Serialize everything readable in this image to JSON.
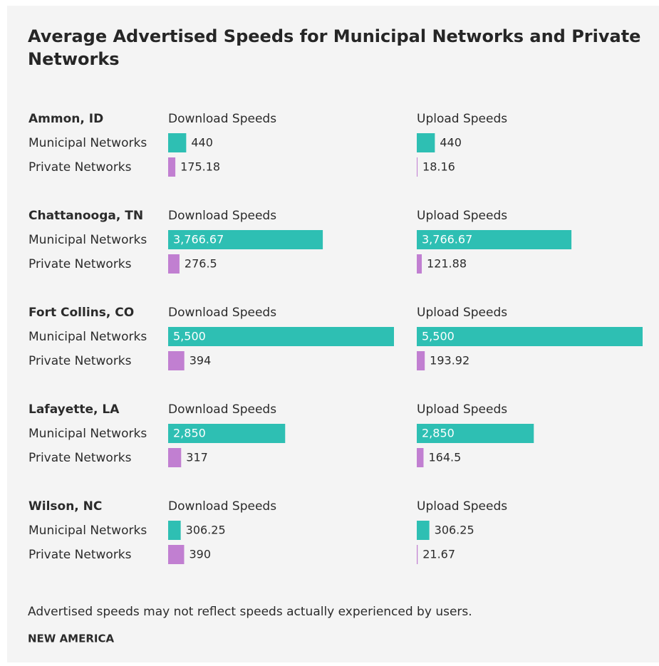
{
  "chart_data": {
    "type": "bar",
    "title": "Average Advertised Speeds for Municipal Networks and Private Networks",
    "categories": [
      "Ammon, ID",
      "Chattanooga, TN",
      "Fort Collins, CO",
      "Lafayette, LA",
      "Wilson, NC"
    ],
    "series": [
      {
        "name": "Municipal Networks",
        "color": "#2ebfb3"
      },
      {
        "name": "Private Networks",
        "color": "#c17fd1"
      }
    ],
    "panels": [
      {
        "title": "Download Speeds",
        "values": [
          [
            440,
            3766.67,
            5500,
            2850,
            306.25
          ],
          [
            175.18,
            276.5,
            394,
            317,
            390
          ]
        ],
        "value_labels": [
          [
            "440",
            "3,766.67",
            "5,500",
            "2,850",
            "306.25"
          ],
          [
            "175.18",
            "276.5",
            "394",
            "317",
            "390"
          ]
        ]
      },
      {
        "title": "Upload Speeds",
        "values": [
          [
            440,
            3766.67,
            5500,
            2850,
            306.25
          ],
          [
            18.16,
            121.88,
            193.92,
            164.5,
            21.67
          ]
        ],
        "value_labels": [
          [
            "440",
            "3,766.67",
            "5,500",
            "2,850",
            "306.25"
          ],
          [
            "18.16",
            "121.88",
            "193.92",
            "164.5",
            "21.67"
          ]
        ]
      }
    ],
    "xlim": [
      0,
      5500
    ],
    "note": "Advertised speeds may not reflect speeds actually experienced by users.",
    "source": "NEW AMERICA"
  }
}
